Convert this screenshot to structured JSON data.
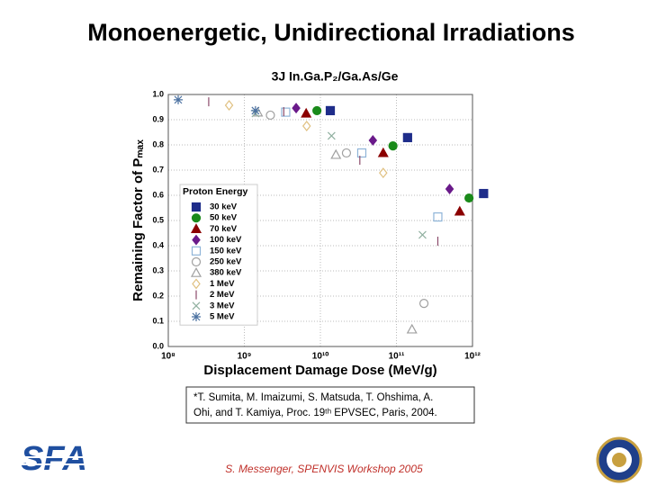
{
  "title": "Monoenergetic, Unidirectional Irradiations",
  "logo": "SFA",
  "citation": [
    "*T. Sumita, M. Imaizumi, S. Matsuda, T. Ohshima, A.",
    "Ohi, and T. Kamiya, Proc. 19ᵗʰ EPVSEC, Paris, 2004."
  ],
  "footer": "S. Messenger, SPENVIS Workshop 2005",
  "chart_data": {
    "type": "scatter",
    "title": "3J In.Ga.P₂/Ga.As/Ge",
    "xlabel": "Displacement Damage Dose (MeV/g)",
    "ylabel": "Remaining Factor of Pₘₐₓ",
    "xscale": "log",
    "xlim": [
      100000000,
      1000000000000
    ],
    "xticks": [
      {
        "value": 100000000,
        "label": "10⁸"
      },
      {
        "value": 1000000000,
        "label": "10⁹"
      },
      {
        "value": 10000000000,
        "label": "10¹⁰"
      },
      {
        "value": 100000000000,
        "label": "10¹¹"
      },
      {
        "value": 1000000000000,
        "label": "10¹²"
      }
    ],
    "ylim": [
      0,
      1
    ],
    "yticks": [
      {
        "value": 0,
        "label": "0.0"
      },
      0.1,
      0.2,
      0.3,
      0.4,
      0.5,
      0.6,
      0.7,
      0.8,
      0.9,
      {
        "value": 1,
        "label": "1.0"
      }
    ],
    "grid": true,
    "legend_title": "Proton Energy",
    "legend": "lower-left",
    "series": [
      {
        "name": "30 keV",
        "color": "#1f2d8a",
        "marker": "square",
        "filled": true,
        "x": [
          13500000000,
          140000000000,
          1400000000000
        ],
        "values": [
          0.936,
          0.829,
          0.607
        ]
      },
      {
        "name": "50 keV",
        "color": "#1a8a1a",
        "marker": "circle",
        "filled": true,
        "x": [
          9000000000,
          90000000000,
          900000000000
        ],
        "values": [
          0.936,
          0.796,
          0.589
        ]
      },
      {
        "name": "70 keV",
        "color": "#8b0000",
        "marker": "triangle",
        "filled": true,
        "x": [
          6500000000,
          67000000000,
          680000000000
        ],
        "values": [
          0.925,
          0.768,
          0.536
        ]
      },
      {
        "name": "100 keV",
        "color": "#6a1a8a",
        "marker": "diamond",
        "filled": true,
        "x": [
          4800000000,
          49000000000,
          500000000000
        ],
        "values": [
          0.946,
          0.818,
          0.625
        ]
      },
      {
        "name": "150 keV",
        "color": "#8fb4d8",
        "marker": "square",
        "filled": false,
        "x": [
          3500000000,
          35000000000,
          350000000000
        ],
        "values": [
          0.93,
          0.768,
          0.514
        ]
      },
      {
        "name": "250 keV",
        "color": "#a0a0a0",
        "marker": "circle",
        "filled": false,
        "x": [
          2200000000,
          22000000000,
          230000000000
        ],
        "values": [
          0.918,
          0.768,
          0.171
        ]
      },
      {
        "name": "380 keV",
        "color": "#a0a0a0",
        "marker": "triangle",
        "filled": false,
        "x": [
          1500000000,
          16000000000,
          160000000000
        ],
        "values": [
          0.929,
          0.761,
          0.068
        ]
      },
      {
        "name": "1 MeV",
        "color": "#e0c080",
        "marker": "diamond",
        "filled": false,
        "x": [
          630000000,
          6600000000,
          67000000000
        ],
        "values": [
          0.957,
          0.875,
          0.689
        ]
      },
      {
        "name": "2 MeV",
        "color": "#8b4a6a",
        "marker": "bar",
        "filled": false,
        "x": [
          340000000,
          3300000000,
          33000000000,
          350000000000
        ],
        "values": [
          0.971,
          0.932,
          0.739,
          0.418
        ]
      },
      {
        "name": "3 MeV",
        "color": "#90b0a0",
        "marker": "x",
        "filled": false,
        "x": [
          1400000000,
          14000000000,
          220000000000
        ],
        "values": [
          0.925,
          0.836,
          0.443
        ]
      },
      {
        "name": "5 MeV",
        "color": "#4a70a0",
        "marker": "asterisk",
        "filled": false,
        "x": [
          135000000,
          1400000000
        ],
        "values": [
          0.979,
          0.936
        ]
      }
    ]
  }
}
